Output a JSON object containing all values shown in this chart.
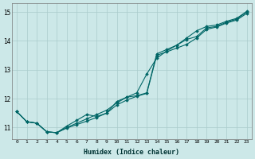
{
  "xlabel": "Humidex (Indice chaleur)",
  "ylabel": "",
  "background_color": "#cce8e8",
  "grid_color": "#aacccc",
  "line_color": "#006666",
  "xlim": [
    -0.5,
    23.5
  ],
  "ylim": [
    10.6,
    15.3
  ],
  "xticks": [
    0,
    1,
    2,
    3,
    4,
    5,
    6,
    7,
    8,
    9,
    10,
    11,
    12,
    13,
    14,
    15,
    16,
    17,
    18,
    19,
    20,
    21,
    22,
    23
  ],
  "yticks": [
    11,
    12,
    13,
    14,
    15
  ],
  "series": [
    {
      "x": [
        0,
        1,
        2,
        3,
        4,
        5,
        6,
        7,
        8,
        9,
        10,
        11,
        12,
        13,
        14,
        15,
        16,
        17,
        18,
        19,
        20,
        21,
        22,
        23
      ],
      "y": [
        11.55,
        11.2,
        11.15,
        10.85,
        10.82,
        11.0,
        11.15,
        11.3,
        11.45,
        11.6,
        11.85,
        12.05,
        12.1,
        12.2,
        13.55,
        13.7,
        13.85,
        14.05,
        14.15,
        14.45,
        14.5,
        14.65,
        14.75,
        15.0
      ]
    },
    {
      "x": [
        0,
        1,
        2,
        3,
        4,
        5,
        6,
        7,
        8,
        9,
        10,
        11,
        12,
        13,
        14,
        15,
        16,
        17,
        18,
        19,
        20,
        21,
        22,
        23
      ],
      "y": [
        11.55,
        11.2,
        11.15,
        10.85,
        10.82,
        11.05,
        11.25,
        11.45,
        11.38,
        11.5,
        11.9,
        12.05,
        12.2,
        12.85,
        13.4,
        13.65,
        13.85,
        14.1,
        14.35,
        14.5,
        14.55,
        14.68,
        14.78,
        15.02
      ]
    },
    {
      "x": [
        0,
        1,
        2,
        3,
        4,
        5,
        6,
        7,
        8,
        9,
        10,
        11,
        12,
        13,
        14,
        15,
        16,
        17,
        18,
        19,
        20,
        21,
        22,
        23
      ],
      "y": [
        11.55,
        11.2,
        11.15,
        10.85,
        10.82,
        10.98,
        11.1,
        11.22,
        11.35,
        11.5,
        11.78,
        11.95,
        12.08,
        12.18,
        13.5,
        13.62,
        13.75,
        13.88,
        14.1,
        14.4,
        14.48,
        14.62,
        14.72,
        14.95
      ]
    }
  ]
}
